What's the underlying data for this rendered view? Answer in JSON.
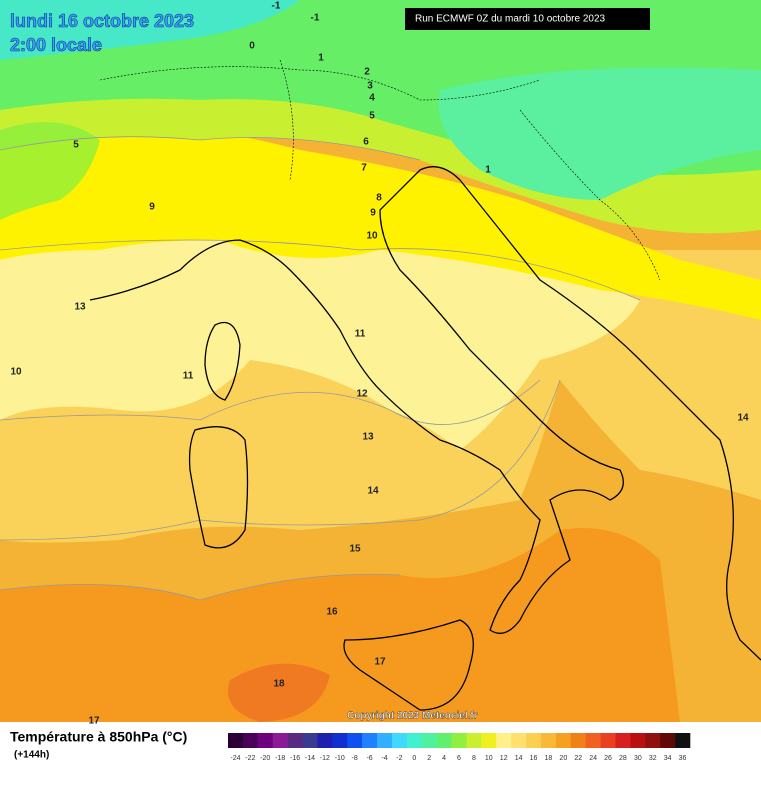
{
  "header": {
    "date": "lundi 16 octobre 2023",
    "time": "2:00 locale",
    "run": "Run ECMWF 0Z du mardi 10 octobre 2023"
  },
  "map": {
    "contour_labels": [
      -1,
      -1,
      0,
      1,
      2,
      3,
      4,
      5,
      5,
      6,
      1,
      7,
      8,
      9,
      9,
      10,
      13,
      10,
      11,
      11,
      12,
      13,
      14,
      14,
      15,
      16,
      17,
      18,
      17
    ],
    "copyright": "Copyright 2023 Meteociel.fr"
  },
  "legend": {
    "title": "Température à 850hPa (°C)",
    "lead": "(+144h)",
    "ticks": [
      -24,
      -22,
      -20,
      -18,
      -16,
      -14,
      -12,
      -10,
      -8,
      -6,
      -4,
      -2,
      0,
      2,
      4,
      6,
      8,
      10,
      12,
      14,
      16,
      18,
      20,
      22,
      24,
      26,
      28,
      30,
      32,
      34,
      36
    ],
    "colors": [
      "#2a0034",
      "#4a0058",
      "#6e0080",
      "#8a1a96",
      "#5a2a80",
      "#3a3a90",
      "#2020b0",
      "#1030d0",
      "#1050f0",
      "#2080ff",
      "#30b0ff",
      "#40d8ff",
      "#40f0d0",
      "#50f0a0",
      "#60f070",
      "#90f040",
      "#c8f030",
      "#f0f020",
      "#fff08a",
      "#fde070",
      "#fbcf50",
      "#f8b838",
      "#f5a020",
      "#f08018",
      "#f06020",
      "#e84020",
      "#d82020",
      "#b81010",
      "#901010",
      "#600808",
      "#101010"
    ]
  }
}
